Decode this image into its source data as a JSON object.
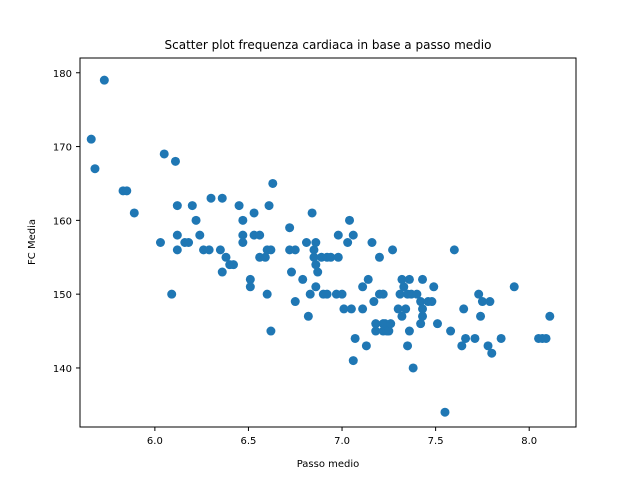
{
  "chart_data": {
    "type": "scatter",
    "title": "Scatter plot frequenza cardiaca in base a passo medio",
    "xlabel": "Passo medio",
    "ylabel": "FC Media",
    "xlim": [
      5.6,
      8.25
    ],
    "ylim": [
      132,
      182
    ],
    "xticks": [
      "6.0",
      "6.5",
      "7.0",
      "7.5",
      "8.0"
    ],
    "yticks": [
      "140",
      "150",
      "160",
      "170",
      "180"
    ],
    "grid": false,
    "marker_color": "#1f77b4",
    "points": [
      [
        5.66,
        171
      ],
      [
        5.68,
        167
      ],
      [
        5.73,
        179
      ],
      [
        5.83,
        164
      ],
      [
        5.85,
        164
      ],
      [
        5.89,
        161
      ],
      [
        6.03,
        157
      ],
      [
        6.05,
        169
      ],
      [
        6.09,
        150
      ],
      [
        6.11,
        168
      ],
      [
        6.12,
        162
      ],
      [
        6.12,
        158
      ],
      [
        6.12,
        156
      ],
      [
        6.16,
        157
      ],
      [
        6.18,
        157
      ],
      [
        6.2,
        162
      ],
      [
        6.22,
        160
      ],
      [
        6.24,
        158
      ],
      [
        6.26,
        156
      ],
      [
        6.29,
        156
      ],
      [
        6.3,
        163
      ],
      [
        6.35,
        156
      ],
      [
        6.36,
        163
      ],
      [
        6.36,
        153
      ],
      [
        6.38,
        155
      ],
      [
        6.4,
        154
      ],
      [
        6.42,
        154
      ],
      [
        6.45,
        162
      ],
      [
        6.47,
        160
      ],
      [
        6.47,
        158
      ],
      [
        6.47,
        157
      ],
      [
        6.51,
        152
      ],
      [
        6.51,
        151
      ],
      [
        6.53,
        161
      ],
      [
        6.53,
        158
      ],
      [
        6.56,
        158
      ],
      [
        6.56,
        155
      ],
      [
        6.59,
        155
      ],
      [
        6.6,
        156
      ],
      [
        6.6,
        150
      ],
      [
        6.61,
        162
      ],
      [
        6.62,
        156
      ],
      [
        6.62,
        145
      ],
      [
        6.63,
        165
      ],
      [
        6.72,
        159
      ],
      [
        6.72,
        156
      ],
      [
        6.73,
        153
      ],
      [
        6.75,
        149
      ],
      [
        6.75,
        156
      ],
      [
        6.79,
        152
      ],
      [
        6.81,
        157
      ],
      [
        6.82,
        147
      ],
      [
        6.83,
        150
      ],
      [
        6.84,
        161
      ],
      [
        6.85,
        156
      ],
      [
        6.85,
        155
      ],
      [
        6.86,
        154
      ],
      [
        6.86,
        157
      ],
      [
        6.86,
        151
      ],
      [
        6.87,
        153
      ],
      [
        6.89,
        155
      ],
      [
        6.9,
        150
      ],
      [
        6.92,
        150
      ],
      [
        6.92,
        155
      ],
      [
        6.94,
        155
      ],
      [
        6.97,
        150
      ],
      [
        6.98,
        158
      ],
      [
        6.98,
        155
      ],
      [
        7.0,
        150
      ],
      [
        7.01,
        148
      ],
      [
        7.03,
        157
      ],
      [
        7.04,
        160
      ],
      [
        7.05,
        148
      ],
      [
        7.06,
        158
      ],
      [
        7.06,
        141
      ],
      [
        7.07,
        144
      ],
      [
        7.11,
        151
      ],
      [
        7.11,
        148
      ],
      [
        7.13,
        143
      ],
      [
        7.14,
        152
      ],
      [
        7.16,
        157
      ],
      [
        7.17,
        149
      ],
      [
        7.18,
        145
      ],
      [
        7.18,
        146
      ],
      [
        7.2,
        150
      ],
      [
        7.2,
        155
      ],
      [
        7.22,
        146
      ],
      [
        7.22,
        145
      ],
      [
        7.22,
        150
      ],
      [
        7.23,
        146
      ],
      [
        7.24,
        145
      ],
      [
        7.25,
        145
      ],
      [
        7.26,
        146
      ],
      [
        7.27,
        156
      ],
      [
        7.3,
        148
      ],
      [
        7.31,
        150
      ],
      [
        7.32,
        152
      ],
      [
        7.32,
        147
      ],
      [
        7.33,
        151
      ],
      [
        7.34,
        148
      ],
      [
        7.35,
        150
      ],
      [
        7.35,
        143
      ],
      [
        7.36,
        145
      ],
      [
        7.36,
        152
      ],
      [
        7.37,
        150
      ],
      [
        7.38,
        140
      ],
      [
        7.4,
        150
      ],
      [
        7.42,
        149
      ],
      [
        7.42,
        146
      ],
      [
        7.43,
        147
      ],
      [
        7.43,
        152
      ],
      [
        7.43,
        148
      ],
      [
        7.46,
        149
      ],
      [
        7.48,
        149
      ],
      [
        7.49,
        151
      ],
      [
        7.51,
        146
      ],
      [
        7.55,
        134
      ],
      [
        7.58,
        145
      ],
      [
        7.6,
        156
      ],
      [
        7.64,
        143
      ],
      [
        7.65,
        148
      ],
      [
        7.66,
        144
      ],
      [
        7.71,
        144
      ],
      [
        7.73,
        150
      ],
      [
        7.74,
        147
      ],
      [
        7.75,
        149
      ],
      [
        7.78,
        143
      ],
      [
        7.79,
        149
      ],
      [
        7.8,
        142
      ],
      [
        7.85,
        144
      ],
      [
        7.92,
        151
      ],
      [
        8.05,
        144
      ],
      [
        8.07,
        144
      ],
      [
        8.09,
        144
      ],
      [
        8.11,
        147
      ]
    ]
  }
}
